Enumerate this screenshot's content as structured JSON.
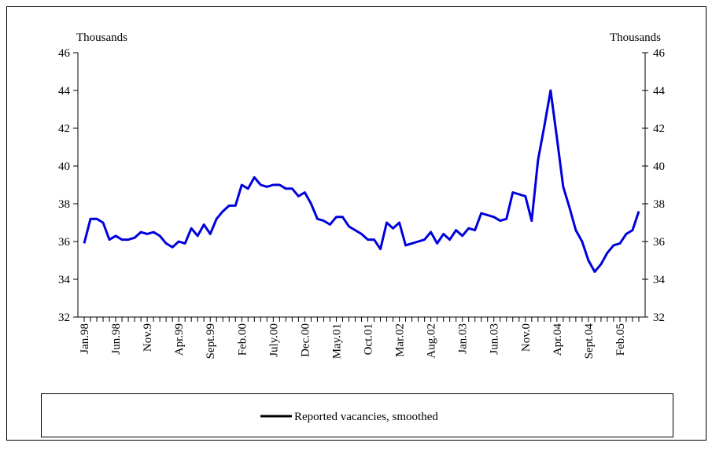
{
  "chart_data": {
    "type": "line",
    "y_label_left": "Thousands",
    "y_label_right": "Thousands",
    "categories": [
      "Jan.98",
      null,
      null,
      null,
      null,
      "Jun.98",
      null,
      null,
      null,
      null,
      "Nov.9",
      null,
      null,
      null,
      null,
      "Apr.99",
      null,
      null,
      null,
      null,
      "Sept.99",
      null,
      null,
      null,
      null,
      "Feb.00",
      null,
      null,
      null,
      null,
      "July.00",
      null,
      null,
      null,
      null,
      "Dec.00",
      null,
      null,
      null,
      null,
      "May.01",
      null,
      null,
      null,
      null,
      "Oct.01",
      null,
      null,
      null,
      null,
      "Mar.02",
      null,
      null,
      null,
      null,
      "Aug.02",
      null,
      null,
      null,
      null,
      "Jan.03",
      null,
      null,
      null,
      null,
      "Jun.03",
      null,
      null,
      null,
      null,
      "Nov.0",
      null,
      null,
      null,
      null,
      "Apr.04",
      null,
      null,
      null,
      null,
      "Sept.04",
      null,
      null,
      null,
      null,
      "Feb.05",
      null,
      null,
      null
    ],
    "series": [
      {
        "name": "Reported vacancies, smoothed",
        "color": "#0000dd",
        "values": [
          35.9,
          37.2,
          37.2,
          37.0,
          36.1,
          36.3,
          36.1,
          36.1,
          36.2,
          36.5,
          36.4,
          36.5,
          36.3,
          35.9,
          35.7,
          36.0,
          35.9,
          36.7,
          36.3,
          36.9,
          36.4,
          37.2,
          37.6,
          37.9,
          37.9,
          39.0,
          38.8,
          39.4,
          39.0,
          38.9,
          39.0,
          39.0,
          38.8,
          38.8,
          38.4,
          38.6,
          38.0,
          37.2,
          37.1,
          36.9,
          37.3,
          37.3,
          36.8,
          36.6,
          36.4,
          36.1,
          36.1,
          35.6,
          37.0,
          36.7,
          37.0,
          35.8,
          35.9,
          36.0,
          36.1,
          36.5,
          35.9,
          36.4,
          36.1,
          36.6,
          36.3,
          36.7,
          36.6,
          37.5,
          37.4,
          37.3,
          37.1,
          37.2,
          38.6,
          38.5,
          38.4,
          37.1,
          40.3,
          42.1,
          44.0,
          41.5,
          38.9,
          37.8,
          36.6,
          36.0,
          35.0,
          34.4,
          34.8,
          35.4,
          35.8,
          35.9,
          36.4,
          36.6,
          37.6
        ]
      }
    ],
    "ylim": [
      32,
      46
    ],
    "yticks": [
      32,
      34,
      36,
      38,
      40,
      42,
      44,
      46
    ],
    "legend": "bottom"
  }
}
